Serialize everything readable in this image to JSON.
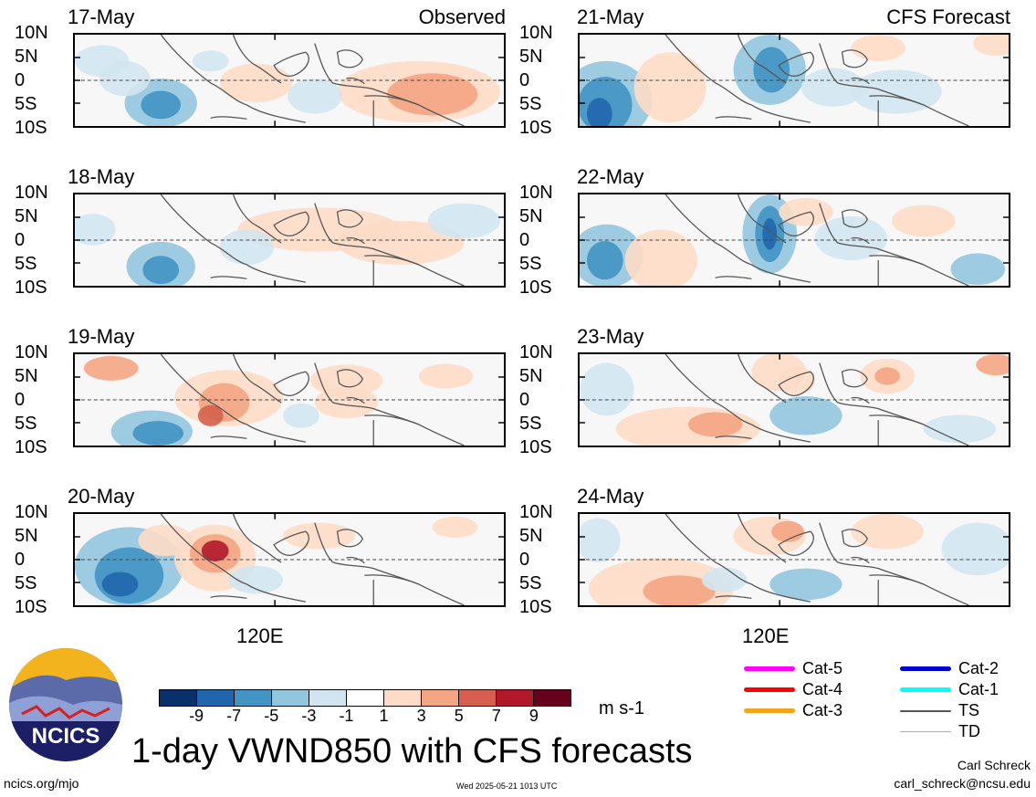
{
  "panels": [
    {
      "date": "17-May",
      "corner_label": "Observed"
    },
    {
      "date": "18-May",
      "corner_label": ""
    },
    {
      "date": "19-May",
      "corner_label": ""
    },
    {
      "date": "20-May",
      "corner_label": ""
    },
    {
      "date": "21-May",
      "corner_label": "CFS Forecast"
    },
    {
      "date": "22-May",
      "corner_label": ""
    },
    {
      "date": "23-May",
      "corner_label": ""
    },
    {
      "date": "24-May",
      "corner_label": ""
    }
  ],
  "lat_labels": [
    "10N",
    "5N",
    "0",
    "5S",
    "10S"
  ],
  "lon_label": "120E",
  "colorbar": {
    "labels": [
      "-9",
      "-7",
      "-5",
      "-3",
      "-1",
      "1",
      "3",
      "5",
      "7",
      "9"
    ],
    "colors": [
      "#08306b",
      "#2166ac",
      "#4393c3",
      "#92c5de",
      "#d1e5f0",
      "#ffffff",
      "#fddbc7",
      "#f4a582",
      "#d6604d",
      "#b2182b",
      "#67001f"
    ],
    "units": "m s-1"
  },
  "legend": [
    {
      "label": "Cat-5",
      "color": "#ff00ff",
      "weight": "thick"
    },
    {
      "label": "Cat-4",
      "color": "#ff0000",
      "weight": "thick"
    },
    {
      "label": "Cat-3",
      "color": "#f5a31a",
      "weight": "thick"
    },
    {
      "label": "Cat-2",
      "color": "#0000cc",
      "weight": "thick"
    },
    {
      "label": "Cat-1",
      "color": "#00ffff",
      "weight": "thick"
    },
    {
      "label": "TS",
      "color": "#555555",
      "weight": "medium"
    },
    {
      "label": "TD",
      "color": "#aaaaaa",
      "weight": "thin"
    }
  ],
  "title": "1-day VWND850 with CFS forecasts",
  "logo_text": "NCICS",
  "footer": {
    "url": "ncics.org/mjo",
    "timestamp": "Wed 2025-05-21 1013 UTC",
    "author": "Carl Schreck",
    "email": "carl_schreck@ncsu.edu"
  }
}
